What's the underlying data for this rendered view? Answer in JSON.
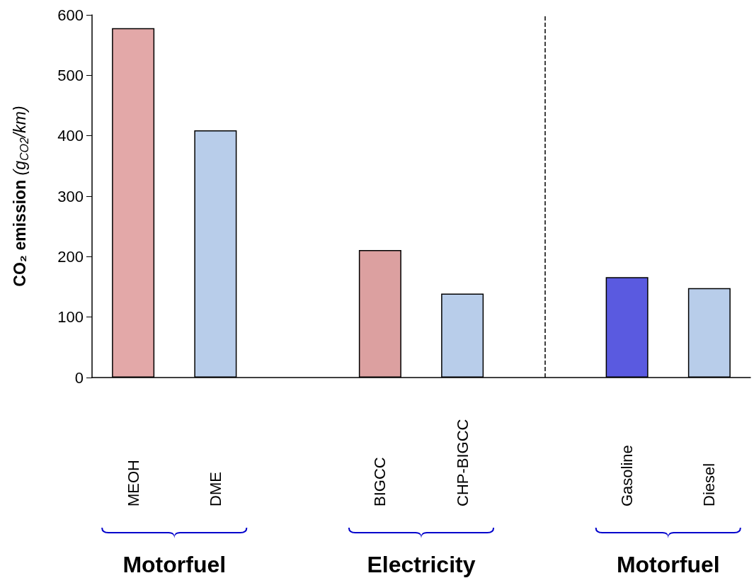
{
  "chart_data": {
    "type": "bar",
    "ylabel": "CO₂ emission (g$_{CO2}$/km)",
    "categories": [
      "MEOH",
      "DME",
      null,
      "BIGCC",
      "CHP-BIGCC",
      null,
      "Gasoline",
      "Diesel"
    ],
    "values": [
      578,
      409,
      null,
      211,
      139,
      null,
      166,
      148
    ],
    "colors": [
      "#e3a8a8",
      "#b8cdea",
      null,
      "#dca0a0",
      "#b8cdea",
      null,
      "#5a5ae0",
      "#b8cdea"
    ],
    "ylim": [
      0,
      600
    ],
    "yticks": [
      0,
      100,
      200,
      300,
      400,
      500,
      600
    ],
    "ref_lines": [
      {
        "axis": "x",
        "value": null,
        "line_style": "dashed"
      }
    ],
    "annotations": [
      "Motorfuel",
      "Electricity",
      "Motorfuel"
    ]
  }
}
